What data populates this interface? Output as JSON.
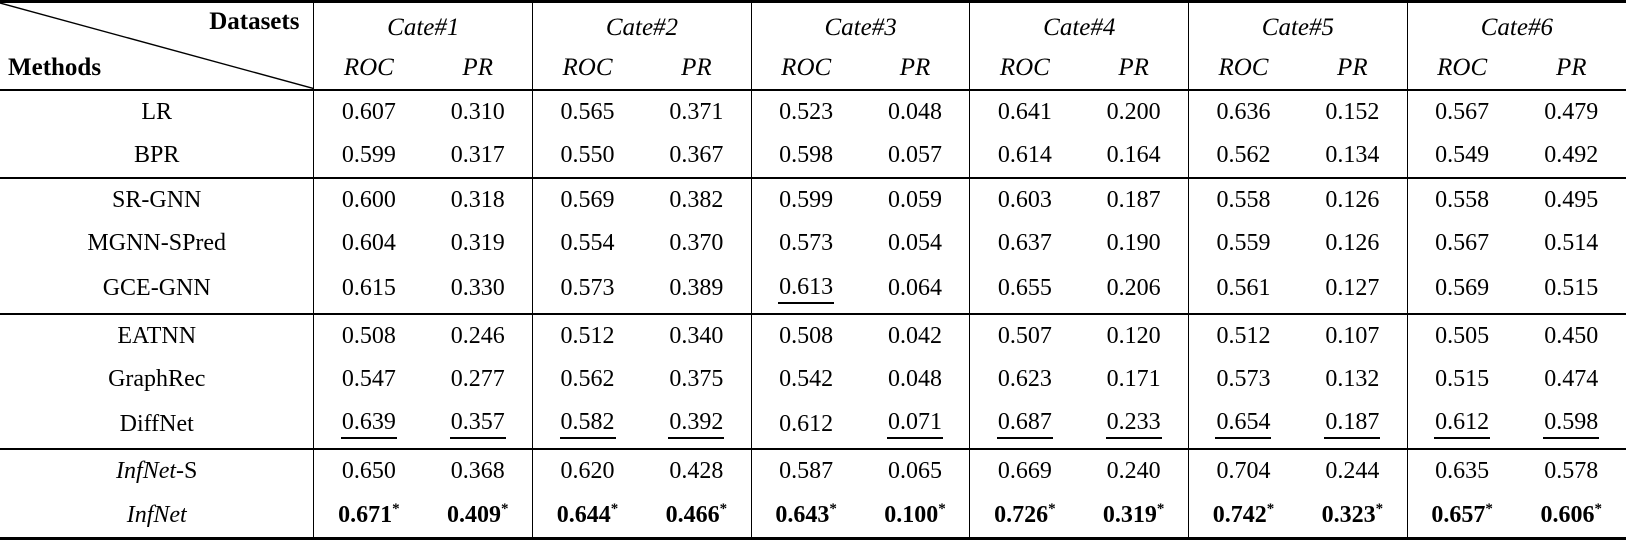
{
  "colors": {
    "text": "#000000",
    "background": "#ffffff",
    "rule": "#000000"
  },
  "table": {
    "corner": {
      "top_label": "Datasets",
      "bottom_label": "Methods"
    },
    "datasets": [
      "Cate#1",
      "Cate#2",
      "Cate#3",
      "Cate#4",
      "Cate#5",
      "Cate#6"
    ],
    "metric_headers": [
      "ROC",
      "PR"
    ],
    "groups": [
      {
        "rows": [
          {
            "method": [
              {
                "text": "LR"
              }
            ],
            "values": [
              {
                "v": "0.607"
              },
              {
                "v": "0.310"
              },
              {
                "v": "0.565"
              },
              {
                "v": "0.371"
              },
              {
                "v": "0.523"
              },
              {
                "v": "0.048"
              },
              {
                "v": "0.641"
              },
              {
                "v": "0.200"
              },
              {
                "v": "0.636"
              },
              {
                "v": "0.152"
              },
              {
                "v": "0.567"
              },
              {
                "v": "0.479"
              }
            ]
          },
          {
            "method": [
              {
                "text": "BPR"
              }
            ],
            "values": [
              {
                "v": "0.599"
              },
              {
                "v": "0.317"
              },
              {
                "v": "0.550"
              },
              {
                "v": "0.367"
              },
              {
                "v": "0.598"
              },
              {
                "v": "0.057"
              },
              {
                "v": "0.614"
              },
              {
                "v": "0.164"
              },
              {
                "v": "0.562"
              },
              {
                "v": "0.134"
              },
              {
                "v": "0.549"
              },
              {
                "v": "0.492"
              }
            ]
          }
        ]
      },
      {
        "rows": [
          {
            "method": [
              {
                "text": "SR-GNN"
              }
            ],
            "values": [
              {
                "v": "0.600"
              },
              {
                "v": "0.318"
              },
              {
                "v": "0.569"
              },
              {
                "v": "0.382"
              },
              {
                "v": "0.599"
              },
              {
                "v": "0.059"
              },
              {
                "v": "0.603"
              },
              {
                "v": "0.187"
              },
              {
                "v": "0.558"
              },
              {
                "v": "0.126"
              },
              {
                "v": "0.558"
              },
              {
                "v": "0.495"
              }
            ]
          },
          {
            "method": [
              {
                "text": "MGNN-SPred"
              }
            ],
            "values": [
              {
                "v": "0.604"
              },
              {
                "v": "0.319"
              },
              {
                "v": "0.554"
              },
              {
                "v": "0.370"
              },
              {
                "v": "0.573"
              },
              {
                "v": "0.054"
              },
              {
                "v": "0.637"
              },
              {
                "v": "0.190"
              },
              {
                "v": "0.559"
              },
              {
                "v": "0.126"
              },
              {
                "v": "0.567"
              },
              {
                "v": "0.514"
              }
            ]
          },
          {
            "method": [
              {
                "text": "GCE-GNN"
              }
            ],
            "values": [
              {
                "v": "0.615"
              },
              {
                "v": "0.330"
              },
              {
                "v": "0.573"
              },
              {
                "v": "0.389"
              },
              {
                "v": "0.613",
                "underline": true
              },
              {
                "v": "0.064"
              },
              {
                "v": "0.655"
              },
              {
                "v": "0.206"
              },
              {
                "v": "0.561"
              },
              {
                "v": "0.127"
              },
              {
                "v": "0.569"
              },
              {
                "v": "0.515"
              }
            ]
          }
        ]
      },
      {
        "rows": [
          {
            "method": [
              {
                "text": "EATNN"
              }
            ],
            "values": [
              {
                "v": "0.508"
              },
              {
                "v": "0.246"
              },
              {
                "v": "0.512"
              },
              {
                "v": "0.340"
              },
              {
                "v": "0.508"
              },
              {
                "v": "0.042"
              },
              {
                "v": "0.507"
              },
              {
                "v": "0.120"
              },
              {
                "v": "0.512"
              },
              {
                "v": "0.107"
              },
              {
                "v": "0.505"
              },
              {
                "v": "0.450"
              }
            ]
          },
          {
            "method": [
              {
                "text": "GraphRec"
              }
            ],
            "values": [
              {
                "v": "0.547"
              },
              {
                "v": "0.277"
              },
              {
                "v": "0.562"
              },
              {
                "v": "0.375"
              },
              {
                "v": "0.542"
              },
              {
                "v": "0.048"
              },
              {
                "v": "0.623"
              },
              {
                "v": "0.171"
              },
              {
                "v": "0.573"
              },
              {
                "v": "0.132"
              },
              {
                "v": "0.515"
              },
              {
                "v": "0.474"
              }
            ]
          },
          {
            "method": [
              {
                "text": "DiffNet"
              }
            ],
            "values": [
              {
                "v": "0.639",
                "underline": true
              },
              {
                "v": "0.357",
                "underline": true
              },
              {
                "v": "0.582",
                "underline": true
              },
              {
                "v": "0.392",
                "underline": true
              },
              {
                "v": "0.612"
              },
              {
                "v": "0.071",
                "underline": true
              },
              {
                "v": "0.687",
                "underline": true
              },
              {
                "v": "0.233",
                "underline": true
              },
              {
                "v": "0.654",
                "underline": true
              },
              {
                "v": "0.187",
                "underline": true
              },
              {
                "v": "0.612",
                "underline": true
              },
              {
                "v": "0.598",
                "underline": true
              }
            ]
          }
        ]
      },
      {
        "rows": [
          {
            "method": [
              {
                "text": "InfNet",
                "italic": true
              },
              {
                "text": "-S"
              }
            ],
            "values": [
              {
                "v": "0.650"
              },
              {
                "v": "0.368"
              },
              {
                "v": "0.620"
              },
              {
                "v": "0.428"
              },
              {
                "v": "0.587"
              },
              {
                "v": "0.065"
              },
              {
                "v": "0.669"
              },
              {
                "v": "0.240"
              },
              {
                "v": "0.704"
              },
              {
                "v": "0.244"
              },
              {
                "v": "0.635"
              },
              {
                "v": "0.578"
              }
            ]
          },
          {
            "method": [
              {
                "text": "InfNet",
                "italic": true
              }
            ],
            "values": [
              {
                "v": "0.671",
                "bold": true,
                "star": "*"
              },
              {
                "v": "0.409",
                "bold": true,
                "star": "*"
              },
              {
                "v": "0.644",
                "bold": true,
                "star": "*"
              },
              {
                "v": "0.466",
                "bold": true,
                "star": "*"
              },
              {
                "v": "0.643",
                "bold": true,
                "star": "*"
              },
              {
                "v": "0.100",
                "bold": true,
                "star": "*"
              },
              {
                "v": "0.726",
                "bold": true,
                "star": "*"
              },
              {
                "v": "0.319",
                "bold": true,
                "star": "*"
              },
              {
                "v": "0.742",
                "bold": true,
                "star": "*"
              },
              {
                "v": "0.323",
                "bold": true,
                "star": "*"
              },
              {
                "v": "0.657",
                "bold": true,
                "star": "*"
              },
              {
                "v": "0.606",
                "bold": true,
                "star": "*"
              }
            ]
          }
        ]
      }
    ]
  }
}
